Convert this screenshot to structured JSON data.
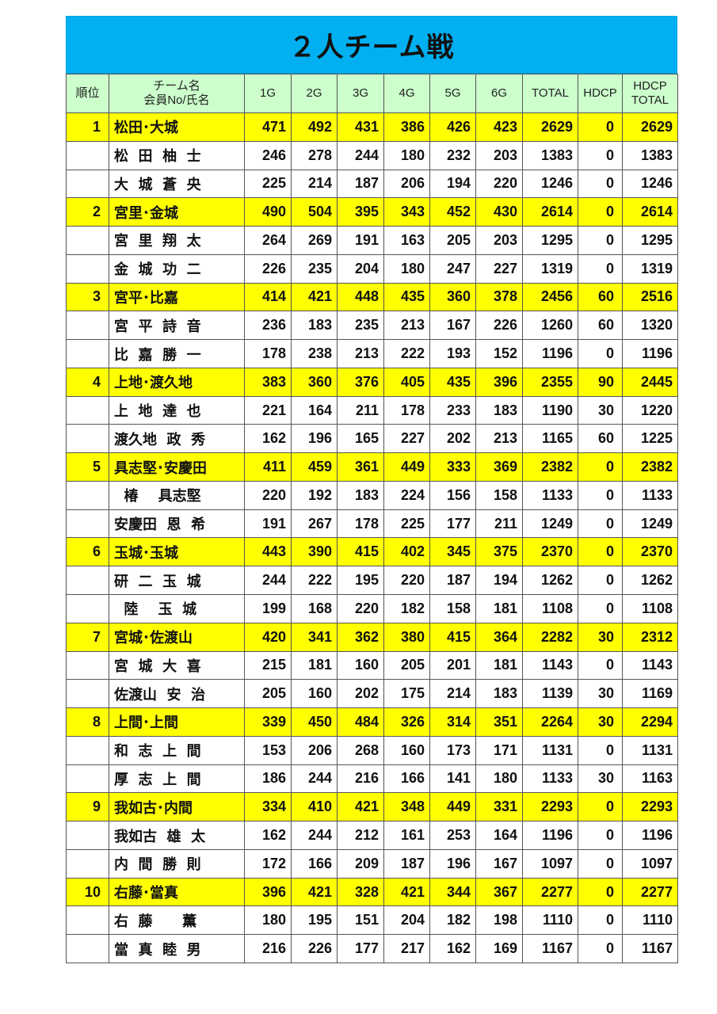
{
  "title": "２人チーム戦",
  "colors": {
    "title_bg": "#00b0f0",
    "header_bg": "#ccffcc",
    "team_row_bg": "#ffff00"
  },
  "headers": {
    "rank": "順位",
    "name_line1": "チーム名",
    "name_line2": "会員No/氏名",
    "g1": "1G",
    "g2": "2G",
    "g3": "3G",
    "g4": "4G",
    "g5": "5G",
    "g6": "6G",
    "total": "TOTAL",
    "hdcp": "HDCP",
    "hdcp_total_line1": "HDCP",
    "hdcp_total_line2": "TOTAL"
  },
  "rows": [
    {
      "rank": "1",
      "name": "松田･大城",
      "team": true,
      "games": [
        471,
        492,
        431,
        386,
        426,
        423
      ],
      "total": 2629,
      "hdcp": 0,
      "hdcp_total": 2629
    },
    {
      "rank": "",
      "name": "松  田  柚  士",
      "games": [
        246,
        278,
        244,
        180,
        232,
        203
      ],
      "total": 1383,
      "hdcp": 0,
      "hdcp_total": 1383
    },
    {
      "rank": "",
      "name": "大  城  蒼  央",
      "games": [
        225,
        214,
        187,
        206,
        194,
        220
      ],
      "total": 1246,
      "hdcp": 0,
      "hdcp_total": 1246
    },
    {
      "rank": "2",
      "name": "宮里･金城",
      "team": true,
      "games": [
        490,
        504,
        395,
        343,
        452,
        430
      ],
      "total": 2614,
      "hdcp": 0,
      "hdcp_total": 2614
    },
    {
      "rank": "",
      "name": "宮  里  翔  太",
      "games": [
        264,
        269,
        191,
        163,
        205,
        203
      ],
      "total": 1295,
      "hdcp": 0,
      "hdcp_total": 1295
    },
    {
      "rank": "",
      "name": "金  城  功  二",
      "games": [
        226,
        235,
        204,
        180,
        247,
        227
      ],
      "total": 1319,
      "hdcp": 0,
      "hdcp_total": 1319
    },
    {
      "rank": "3",
      "name": "宮平･比嘉",
      "team": true,
      "games": [
        414,
        421,
        448,
        435,
        360,
        378
      ],
      "total": 2456,
      "hdcp": 60,
      "hdcp_total": 2516
    },
    {
      "rank": "",
      "name": "宮  平  詩  音",
      "games": [
        236,
        183,
        235,
        213,
        167,
        226
      ],
      "total": 1260,
      "hdcp": 60,
      "hdcp_total": 1320
    },
    {
      "rank": "",
      "name": "比  嘉  勝  一",
      "games": [
        178,
        238,
        213,
        222,
        193,
        152
      ],
      "total": 1196,
      "hdcp": 0,
      "hdcp_total": 1196
    },
    {
      "rank": "4",
      "name": "上地･渡久地",
      "team": true,
      "games": [
        383,
        360,
        376,
        405,
        435,
        396
      ],
      "total": 2355,
      "hdcp": 90,
      "hdcp_total": 2445
    },
    {
      "rank": "",
      "name": "上  地  達  也",
      "games": [
        221,
        164,
        211,
        178,
        233,
        183
      ],
      "total": 1190,
      "hdcp": 30,
      "hdcp_total": 1220
    },
    {
      "rank": "",
      "name": "渡久地  政  秀",
      "games": [
        162,
        196,
        165,
        227,
        202,
        213
      ],
      "total": 1165,
      "hdcp": 60,
      "hdcp_total": 1225
    },
    {
      "rank": "5",
      "name": "具志堅･安慶田",
      "team": true,
      "games": [
        411,
        459,
        361,
        449,
        333,
        369
      ],
      "total": 2382,
      "hdcp": 0,
      "hdcp_total": 2382
    },
    {
      "rank": "",
      "name": "  椿    具志堅",
      "games": [
        220,
        192,
        183,
        224,
        156,
        158
      ],
      "total": 1133,
      "hdcp": 0,
      "hdcp_total": 1133
    },
    {
      "rank": "",
      "name": "安慶田  恩  希",
      "games": [
        191,
        267,
        178,
        225,
        177,
        211
      ],
      "total": 1249,
      "hdcp": 0,
      "hdcp_total": 1249
    },
    {
      "rank": "6",
      "name": "玉城･玉城",
      "team": true,
      "games": [
        443,
        390,
        415,
        402,
        345,
        375
      ],
      "total": 2370,
      "hdcp": 0,
      "hdcp_total": 2370
    },
    {
      "rank": "",
      "name": "研  二  玉  城",
      "games": [
        244,
        222,
        195,
        220,
        187,
        194
      ],
      "total": 1262,
      "hdcp": 0,
      "hdcp_total": 1262
    },
    {
      "rank": "",
      "name": "  陸    玉  城",
      "games": [
        199,
        168,
        220,
        182,
        158,
        181
      ],
      "total": 1108,
      "hdcp": 0,
      "hdcp_total": 1108
    },
    {
      "rank": "7",
      "name": "宮城･佐渡山",
      "team": true,
      "games": [
        420,
        341,
        362,
        380,
        415,
        364
      ],
      "total": 2282,
      "hdcp": 30,
      "hdcp_total": 2312
    },
    {
      "rank": "",
      "name": "宮  城  大  喜",
      "games": [
        215,
        181,
        160,
        205,
        201,
        181
      ],
      "total": 1143,
      "hdcp": 0,
      "hdcp_total": 1143
    },
    {
      "rank": "",
      "name": "佐渡山  安  治",
      "games": [
        205,
        160,
        202,
        175,
        214,
        183
      ],
      "total": 1139,
      "hdcp": 30,
      "hdcp_total": 1169
    },
    {
      "rank": "8",
      "name": "上間･上間",
      "team": true,
      "games": [
        339,
        450,
        484,
        326,
        314,
        351
      ],
      "total": 2264,
      "hdcp": 30,
      "hdcp_total": 2294
    },
    {
      "rank": "",
      "name": "和  志  上  間",
      "games": [
        153,
        206,
        268,
        160,
        173,
        171
      ],
      "total": 1131,
      "hdcp": 0,
      "hdcp_total": 1131
    },
    {
      "rank": "",
      "name": "厚  志  上  間",
      "games": [
        186,
        244,
        216,
        166,
        141,
        180
      ],
      "total": 1133,
      "hdcp": 30,
      "hdcp_total": 1163
    },
    {
      "rank": "9",
      "name": "我如古･内間",
      "team": true,
      "games": [
        334,
        410,
        421,
        348,
        449,
        331
      ],
      "total": 2293,
      "hdcp": 0,
      "hdcp_total": 2293
    },
    {
      "rank": "",
      "name": "我如古  雄  太",
      "games": [
        162,
        244,
        212,
        161,
        253,
        164
      ],
      "total": 1196,
      "hdcp": 0,
      "hdcp_total": 1196
    },
    {
      "rank": "",
      "name": "内  間  勝  則",
      "games": [
        172,
        166,
        209,
        187,
        196,
        167
      ],
      "total": 1097,
      "hdcp": 0,
      "hdcp_total": 1097
    },
    {
      "rank": "10",
      "name": "右藤･當真",
      "team": true,
      "games": [
        396,
        421,
        328,
        421,
        344,
        367
      ],
      "total": 2277,
      "hdcp": 0,
      "hdcp_total": 2277
    },
    {
      "rank": "",
      "name": "右  藤      薫",
      "games": [
        180,
        195,
        151,
        204,
        182,
        198
      ],
      "total": 1110,
      "hdcp": 0,
      "hdcp_total": 1110
    },
    {
      "rank": "",
      "name": "當  真  睦  男",
      "games": [
        216,
        226,
        177,
        217,
        162,
        169
      ],
      "total": 1167,
      "hdcp": 0,
      "hdcp_total": 1167
    }
  ]
}
